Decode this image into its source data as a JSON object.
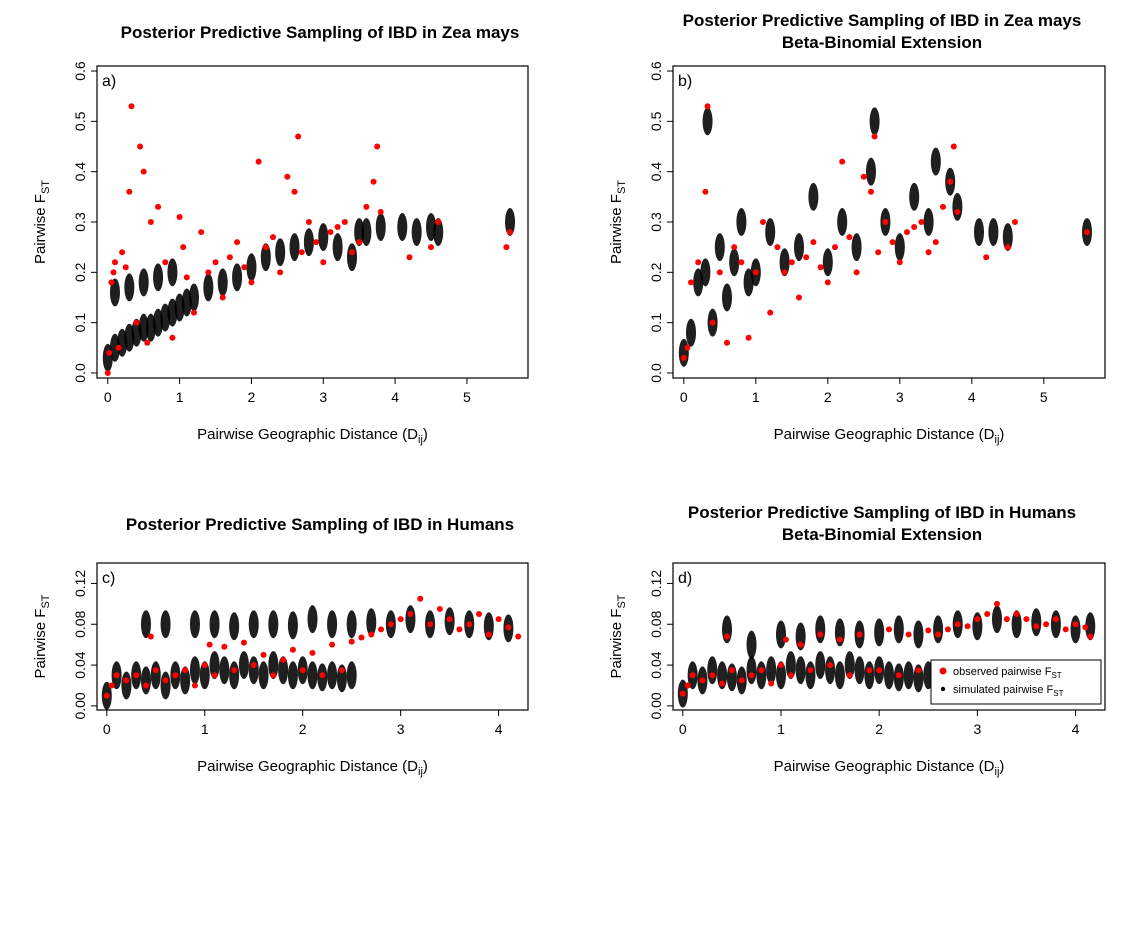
{
  "chart_data": [
    {
      "type": "scatter",
      "panel_label": "a)",
      "title": [
        "Posterior Predictive Sampling of IBD in Zea mays"
      ],
      "xlabel": {
        "main": "Pairwise Geographic Distance (D",
        "sub": "ij",
        "end": ")"
      },
      "ylabel": {
        "main": "Pairwise F",
        "sub": "ST"
      },
      "xlim": [
        -0.15,
        5.85
      ],
      "ylim": [
        -0.01,
        0.61
      ],
      "xticks": [
        0,
        1,
        2,
        3,
        4,
        5
      ],
      "yticks": [
        0.0,
        0.1,
        0.2,
        0.3,
        0.4,
        0.5,
        0.6
      ],
      "ytick_labels": [
        "0.0",
        "0.1",
        "0.2",
        "0.3",
        "0.4",
        "0.5",
        "0.6"
      ],
      "grid": false,
      "series": [
        {
          "color": "#000000",
          "marker": "dot",
          "x": [
            0.0,
            0.1,
            0.2,
            0.3,
            0.4,
            0.5,
            0.6,
            0.7,
            0.8,
            0.9,
            1.0,
            0.1,
            0.3,
            0.5,
            0.7,
            0.9,
            1.1,
            1.2,
            1.4,
            1.6,
            1.8,
            2.0,
            2.2,
            2.4,
            2.6,
            2.8,
            3.0,
            3.2,
            3.4,
            3.5,
            3.6,
            3.8,
            4.1,
            4.3,
            4.5,
            4.6,
            5.6
          ],
          "y": [
            0.03,
            0.05,
            0.06,
            0.07,
            0.08,
            0.09,
            0.09,
            0.1,
            0.11,
            0.12,
            0.13,
            0.16,
            0.17,
            0.18,
            0.19,
            0.2,
            0.14,
            0.15,
            0.17,
            0.18,
            0.19,
            0.21,
            0.23,
            0.24,
            0.25,
            0.26,
            0.27,
            0.25,
            0.23,
            0.28,
            0.28,
            0.29,
            0.29,
            0.28,
            0.29,
            0.28,
            0.3
          ]
        },
        {
          "color": "#ff0000",
          "marker": "point",
          "x": [
            0.0,
            0.02,
            0.05,
            0.08,
            0.1,
            0.15,
            0.2,
            0.25,
            0.3,
            0.33,
            0.4,
            0.45,
            0.5,
            0.55,
            0.6,
            0.7,
            0.8,
            0.9,
            1.0,
            1.05,
            1.1,
            1.2,
            1.3,
            1.4,
            1.5,
            1.6,
            1.7,
            1.8,
            1.9,
            2.0,
            2.1,
            2.2,
            2.3,
            2.4,
            2.5,
            2.6,
            2.65,
            2.7,
            2.8,
            2.9,
            3.0,
            3.1,
            3.2,
            3.3,
            3.4,
            3.5,
            3.6,
            3.7,
            3.75,
            3.8,
            4.2,
            4.5,
            4.6,
            5.55,
            5.6
          ],
          "y": [
            0.0,
            0.04,
            0.18,
            0.2,
            0.22,
            0.05,
            0.24,
            0.21,
            0.36,
            0.53,
            0.1,
            0.45,
            0.4,
            0.06,
            0.3,
            0.33,
            0.22,
            0.07,
            0.31,
            0.25,
            0.19,
            0.12,
            0.28,
            0.2,
            0.22,
            0.15,
            0.23,
            0.26,
            0.21,
            0.18,
            0.42,
            0.25,
            0.27,
            0.2,
            0.39,
            0.36,
            0.47,
            0.24,
            0.3,
            0.26,
            0.22,
            0.28,
            0.29,
            0.3,
            0.24,
            0.26,
            0.33,
            0.38,
            0.45,
            0.32,
            0.23,
            0.25,
            0.3,
            0.25,
            0.28
          ]
        }
      ]
    },
    {
      "type": "scatter",
      "panel_label": "b)",
      "title": [
        "Posterior Predictive Sampling of IBD in Zea mays",
        "Beta-Binomial Extension"
      ],
      "xlabel": {
        "main": "Pairwise Geographic Distance (D",
        "sub": "ij",
        "end": ")"
      },
      "ylabel": {
        "main": "Pairwise F",
        "sub": "ST"
      },
      "xlim": [
        -0.15,
        5.85
      ],
      "ylim": [
        -0.01,
        0.61
      ],
      "xticks": [
        0,
        1,
        2,
        3,
        4,
        5
      ],
      "yticks": [
        0.0,
        0.1,
        0.2,
        0.3,
        0.4,
        0.5,
        0.6
      ],
      "ytick_labels": [
        "0.0",
        "0.1",
        "0.2",
        "0.3",
        "0.4",
        "0.5",
        "0.6"
      ],
      "grid": false,
      "series": [
        {
          "color": "#000000",
          "marker": "dot",
          "x": [
            0.0,
            0.1,
            0.2,
            0.3,
            0.33,
            0.4,
            0.5,
            0.6,
            0.7,
            0.8,
            0.9,
            1.0,
            1.2,
            1.4,
            1.6,
            1.8,
            2.0,
            2.2,
            2.4,
            2.6,
            2.65,
            2.8,
            3.0,
            3.2,
            3.4,
            3.5,
            3.7,
            3.8,
            4.1,
            4.3,
            4.5,
            5.6
          ],
          "y": [
            0.04,
            0.08,
            0.18,
            0.2,
            0.5,
            0.1,
            0.25,
            0.15,
            0.22,
            0.3,
            0.18,
            0.2,
            0.28,
            0.22,
            0.25,
            0.35,
            0.22,
            0.3,
            0.25,
            0.4,
            0.5,
            0.3,
            0.25,
            0.35,
            0.3,
            0.42,
            0.38,
            0.33,
            0.28,
            0.28,
            0.27,
            0.28
          ]
        },
        {
          "color": "#ff0000",
          "marker": "point",
          "x": [
            0.0,
            0.05,
            0.1,
            0.2,
            0.3,
            0.33,
            0.4,
            0.5,
            0.6,
            0.7,
            0.8,
            0.9,
            1.0,
            1.1,
            1.2,
            1.3,
            1.4,
            1.5,
            1.6,
            1.7,
            1.8,
            1.9,
            2.0,
            2.1,
            2.2,
            2.3,
            2.4,
            2.5,
            2.6,
            2.65,
            2.7,
            2.8,
            2.9,
            3.0,
            3.1,
            3.2,
            3.3,
            3.4,
            3.5,
            3.6,
            3.7,
            3.75,
            3.8,
            4.2,
            4.5,
            4.6,
            5.6
          ],
          "y": [
            0.03,
            0.05,
            0.18,
            0.22,
            0.36,
            0.53,
            0.1,
            0.2,
            0.06,
            0.25,
            0.22,
            0.07,
            0.2,
            0.3,
            0.12,
            0.25,
            0.2,
            0.22,
            0.15,
            0.23,
            0.26,
            0.21,
            0.18,
            0.25,
            0.42,
            0.27,
            0.2,
            0.39,
            0.36,
            0.47,
            0.24,
            0.3,
            0.26,
            0.22,
            0.28,
            0.29,
            0.3,
            0.24,
            0.26,
            0.33,
            0.38,
            0.45,
            0.32,
            0.23,
            0.25,
            0.3,
            0.28
          ]
        }
      ]
    },
    {
      "type": "scatter",
      "panel_label": "c)",
      "title": [
        "Posterior Predictive Sampling of IBD in Humans"
      ],
      "xlabel": {
        "main": "Pairwise Geographic Distance (D",
        "sub": "ij",
        "end": ")"
      },
      "ylabel": {
        "main": "Pairwise F",
        "sub": "ST"
      },
      "xlim": [
        -0.1,
        4.3
      ],
      "ylim": [
        -0.004,
        0.14
      ],
      "xticks": [
        0,
        1,
        2,
        3,
        4
      ],
      "yticks": [
        0.0,
        0.04,
        0.08,
        0.12
      ],
      "ytick_labels": [
        "0.00",
        "0.04",
        "0.08",
        "0.12"
      ],
      "grid": false,
      "series": [
        {
          "color": "#000000",
          "marker": "dot",
          "x": [
            0.0,
            0.1,
            0.2,
            0.3,
            0.4,
            0.5,
            0.6,
            0.7,
            0.8,
            0.9,
            1.0,
            1.1,
            1.2,
            1.3,
            1.4,
            1.5,
            1.6,
            1.7,
            1.8,
            1.9,
            2.0,
            2.1,
            2.2,
            2.3,
            2.4,
            2.5,
            0.4,
            0.6,
            0.9,
            1.1,
            1.3,
            1.5,
            1.7,
            1.9,
            2.1,
            2.3,
            2.5,
            2.7,
            2.9,
            3.1,
            3.3,
            3.5,
            3.7,
            3.9,
            4.1
          ],
          "y": [
            0.01,
            0.03,
            0.02,
            0.03,
            0.025,
            0.03,
            0.02,
            0.03,
            0.025,
            0.035,
            0.03,
            0.04,
            0.035,
            0.03,
            0.04,
            0.035,
            0.03,
            0.04,
            0.035,
            0.03,
            0.035,
            0.03,
            0.028,
            0.03,
            0.027,
            0.03,
            0.08,
            0.08,
            0.08,
            0.08,
            0.078,
            0.08,
            0.08,
            0.079,
            0.085,
            0.08,
            0.08,
            0.082,
            0.08,
            0.085,
            0.08,
            0.083,
            0.08,
            0.078,
            0.076
          ]
        },
        {
          "color": "#ff0000",
          "marker": "point",
          "x": [
            0.0,
            0.05,
            0.1,
            0.2,
            0.3,
            0.4,
            0.45,
            0.5,
            0.6,
            0.7,
            0.8,
            0.9,
            1.0,
            1.05,
            1.1,
            1.2,
            1.3,
            1.4,
            1.5,
            1.6,
            1.7,
            1.8,
            1.9,
            2.0,
            2.1,
            2.2,
            2.3,
            2.4,
            2.5,
            2.6,
            2.7,
            2.8,
            2.9,
            3.0,
            3.1,
            3.2,
            3.3,
            3.4,
            3.5,
            3.6,
            3.7,
            3.8,
            3.9,
            4.0,
            4.1,
            4.2
          ],
          "y": [
            0.01,
            0.02,
            0.03,
            0.025,
            0.03,
            0.02,
            0.068,
            0.035,
            0.025,
            0.03,
            0.035,
            0.02,
            0.04,
            0.06,
            0.03,
            0.058,
            0.035,
            0.062,
            0.04,
            0.05,
            0.03,
            0.045,
            0.055,
            0.035,
            0.052,
            0.03,
            0.06,
            0.035,
            0.063,
            0.067,
            0.07,
            0.075,
            0.08,
            0.085,
            0.09,
            0.105,
            0.08,
            0.095,
            0.085,
            0.075,
            0.08,
            0.09,
            0.07,
            0.085,
            0.077,
            0.068
          ]
        }
      ]
    },
    {
      "type": "scatter",
      "panel_label": "d)",
      "title": [
        "Posterior Predictive Sampling of IBD in Humans",
        "Beta-Binomial Extension"
      ],
      "xlabel": {
        "main": "Pairwise Geographic Distance (D",
        "sub": "ij",
        "end": ")"
      },
      "ylabel": {
        "main": "Pairwise F",
        "sub": "ST"
      },
      "xlim": [
        -0.1,
        4.3
      ],
      "ylim": [
        -0.004,
        0.14
      ],
      "xticks": [
        0,
        1,
        2,
        3,
        4
      ],
      "yticks": [
        0.0,
        0.04,
        0.08,
        0.12
      ],
      "ytick_labels": [
        "0.00",
        "0.04",
        "0.08",
        "0.12"
      ],
      "grid": false,
      "legend": {
        "position": "bottom-right",
        "entries": [
          {
            "text": "observed pairwise F",
            "sub": "ST",
            "color": "#ff0000",
            "marker": "point"
          },
          {
            "text": "simulated pairwise F",
            "sub": "ST",
            "color": "#000000",
            "marker": "dot"
          }
        ]
      },
      "series": [
        {
          "color": "#000000",
          "marker": "dot",
          "x": [
            0.0,
            0.1,
            0.2,
            0.3,
            0.4,
            0.5,
            0.6,
            0.7,
            0.8,
            0.9,
            1.0,
            1.1,
            1.2,
            1.3,
            1.4,
            1.5,
            1.6,
            1.7,
            1.8,
            1.9,
            2.0,
            2.1,
            2.2,
            2.3,
            2.4,
            2.5,
            0.45,
            0.7,
            1.0,
            1.2,
            1.4,
            1.6,
            1.8,
            2.0,
            2.2,
            2.4,
            2.6,
            2.8,
            3.0,
            3.2,
            3.4,
            3.6,
            3.8,
            4.0,
            4.15
          ],
          "y": [
            0.012,
            0.03,
            0.025,
            0.035,
            0.03,
            0.028,
            0.025,
            0.035,
            0.03,
            0.035,
            0.03,
            0.04,
            0.035,
            0.03,
            0.04,
            0.035,
            0.03,
            0.04,
            0.035,
            0.03,
            0.035,
            0.03,
            0.028,
            0.03,
            0.027,
            0.03,
            0.075,
            0.06,
            0.07,
            0.068,
            0.075,
            0.072,
            0.07,
            0.072,
            0.075,
            0.07,
            0.075,
            0.08,
            0.078,
            0.085,
            0.08,
            0.082,
            0.08,
            0.075,
            0.078
          ]
        },
        {
          "color": "#ff0000",
          "marker": "point",
          "x": [
            0.0,
            0.05,
            0.1,
            0.2,
            0.3,
            0.4,
            0.45,
            0.5,
            0.6,
            0.7,
            0.8,
            0.9,
            1.0,
            1.05,
            1.1,
            1.2,
            1.3,
            1.4,
            1.5,
            1.6,
            1.7,
            1.8,
            1.9,
            2.0,
            2.1,
            2.2,
            2.3,
            2.4,
            2.5,
            2.6,
            2.7,
            2.8,
            2.9,
            3.0,
            3.1,
            3.2,
            3.3,
            3.4,
            3.5,
            3.6,
            3.7,
            3.8,
            3.9,
            4.0,
            4.1,
            4.15
          ],
          "y": [
            0.012,
            0.02,
            0.03,
            0.025,
            0.03,
            0.022,
            0.068,
            0.035,
            0.025,
            0.03,
            0.035,
            0.022,
            0.04,
            0.065,
            0.03,
            0.06,
            0.035,
            0.07,
            0.04,
            0.065,
            0.03,
            0.07,
            0.035,
            0.035,
            0.075,
            0.03,
            0.07,
            0.035,
            0.074,
            0.07,
            0.075,
            0.08,
            0.078,
            0.085,
            0.09,
            0.1,
            0.085,
            0.09,
            0.085,
            0.078,
            0.08,
            0.085,
            0.075,
            0.08,
            0.077,
            0.068
          ]
        }
      ]
    }
  ]
}
